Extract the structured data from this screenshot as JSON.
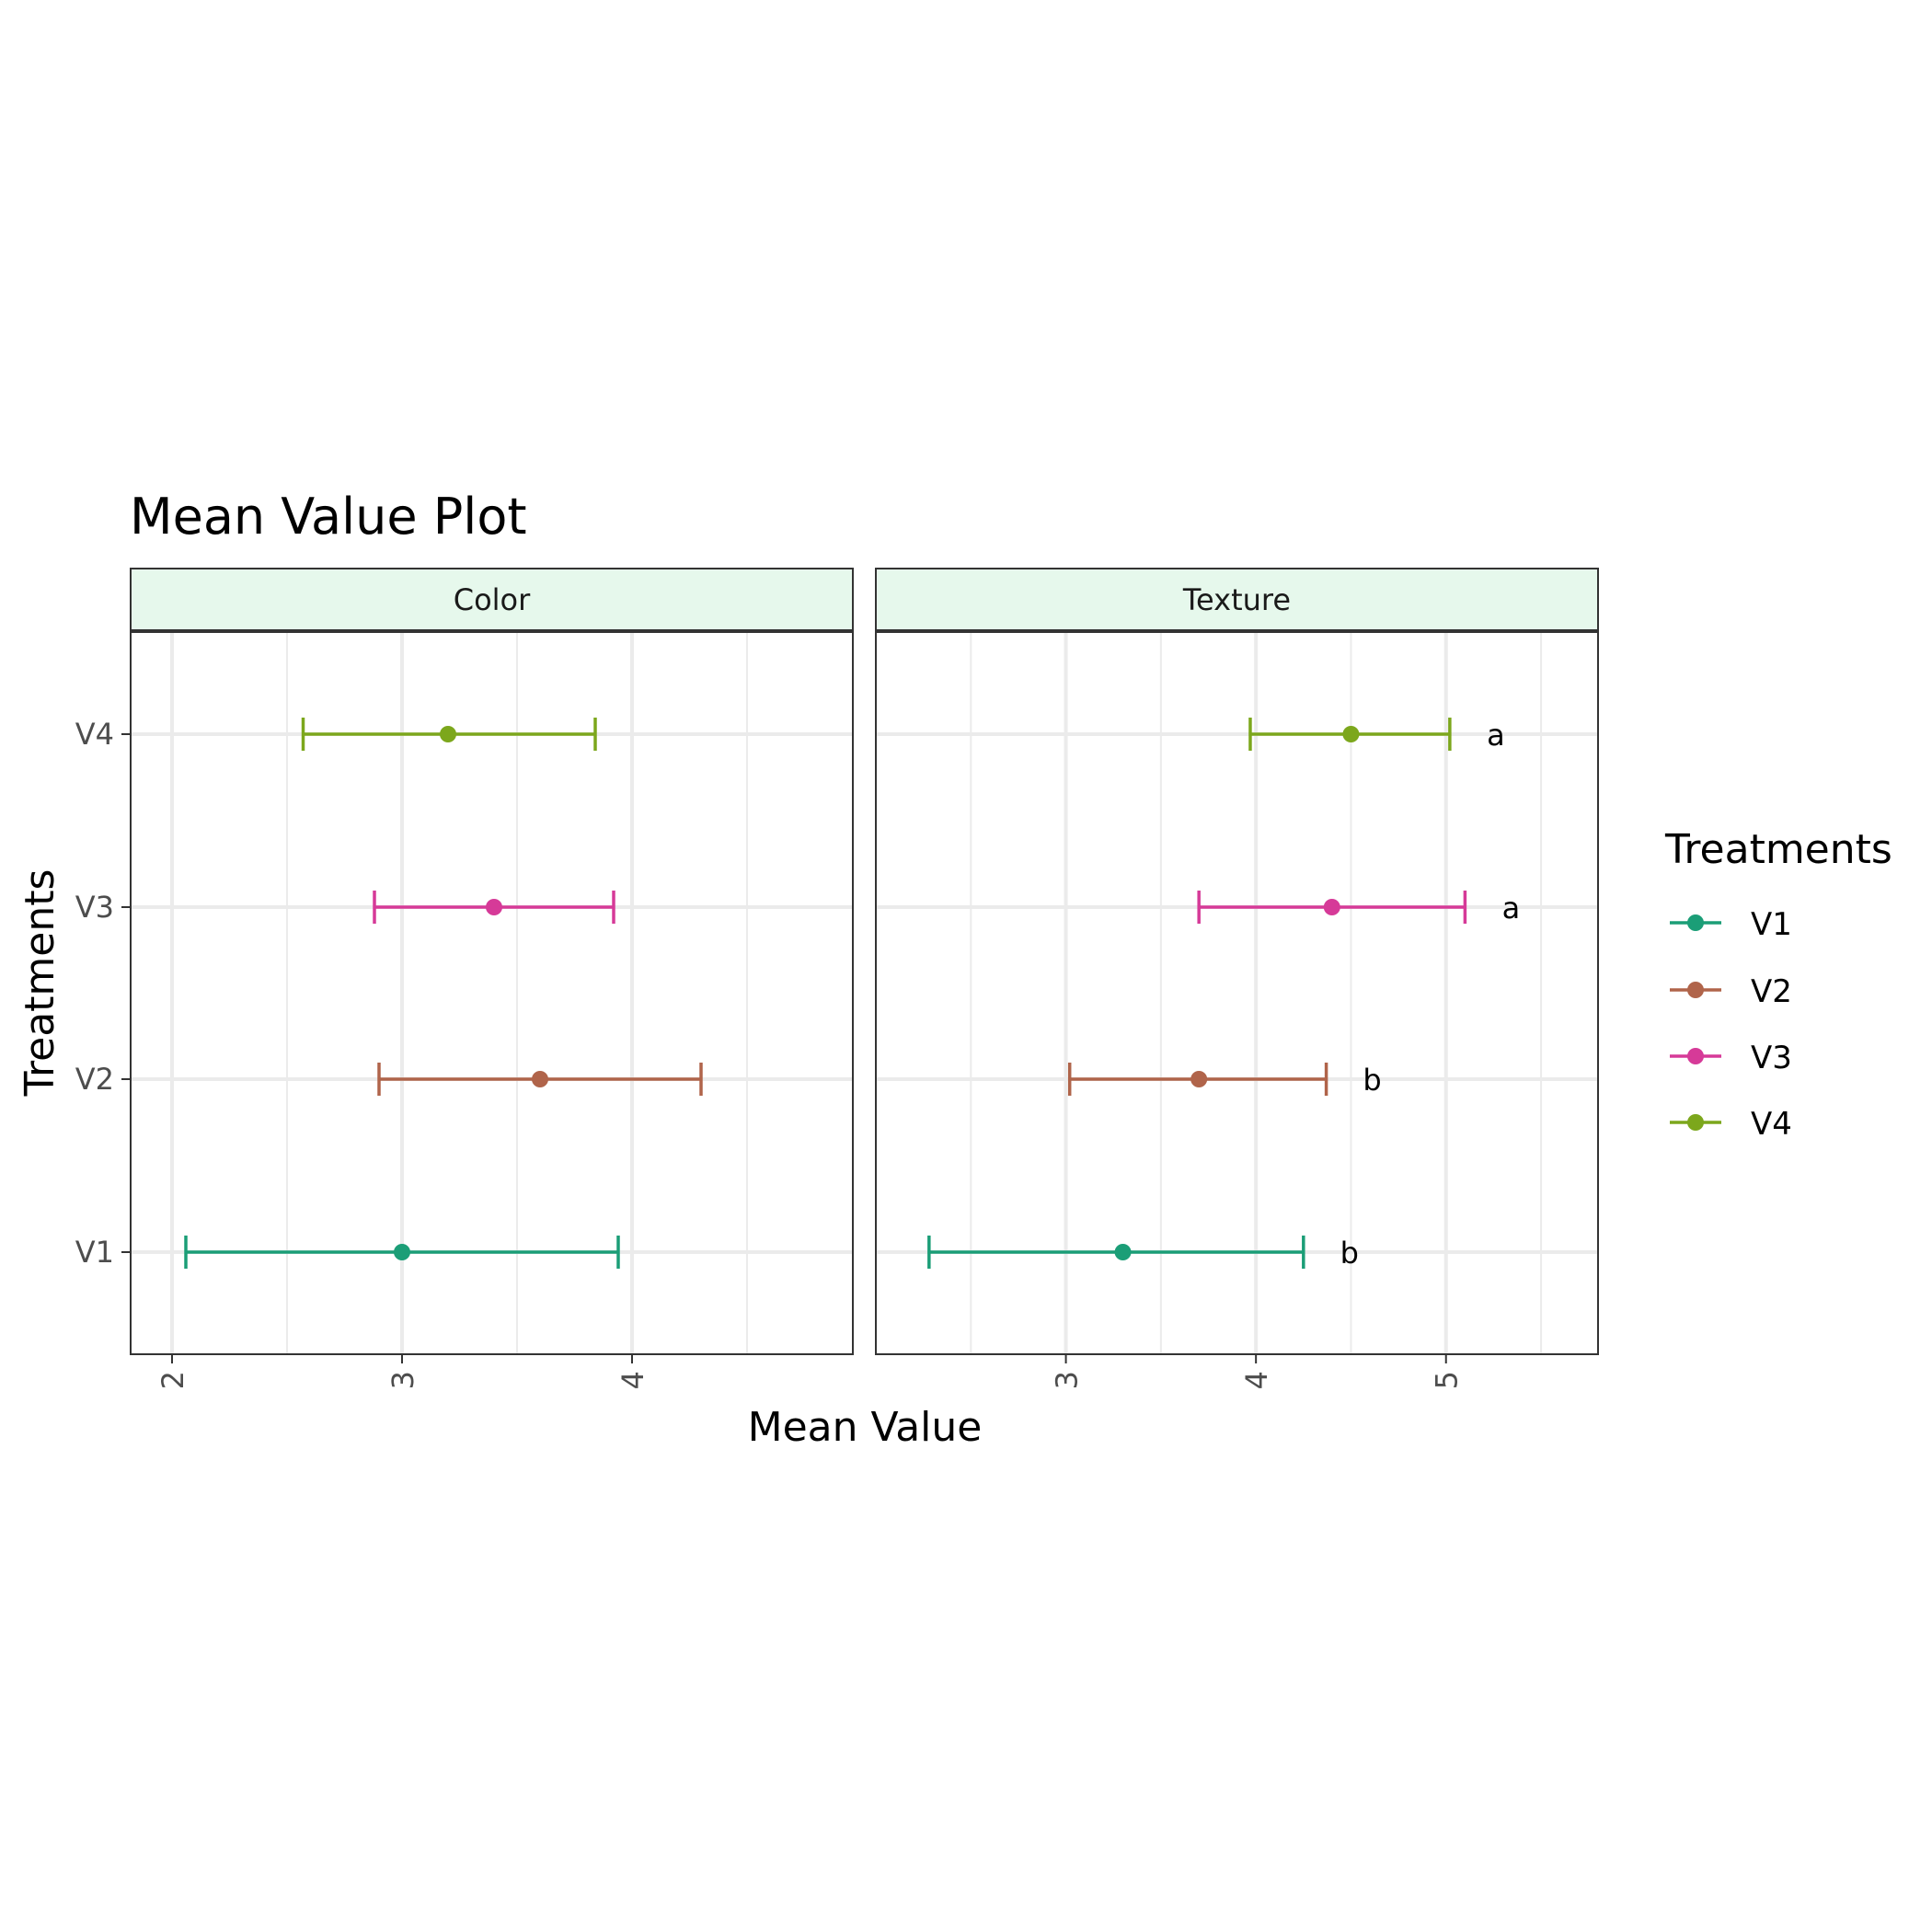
{
  "chart_data": {
    "type": "errorbar",
    "title": "Mean Value Plot",
    "xlabel": "Mean Value",
    "ylabel": "Treatments",
    "categories": [
      "V1",
      "V2",
      "V3",
      "V4"
    ],
    "legend": {
      "title": "Treatments",
      "position": "right",
      "items": [
        "V1",
        "V2",
        "V3",
        "V4"
      ]
    },
    "colors": {
      "V1": "#1b9e77",
      "V2": "#b0644a",
      "V3": "#d63a98",
      "V4": "#7ca71c",
      "strip_fill": "#e6f8ec",
      "grid": "#ebebeb"
    },
    "grid": true,
    "panels": [
      {
        "name": "Color",
        "xlim": [
          1.82,
          4.96
        ],
        "xticks": [
          2,
          3,
          4
        ],
        "xticklabels": [
          "2",
          "3",
          "4"
        ],
        "points": [
          {
            "treatment": "V1",
            "mean": 3.0,
            "lower": 2.06,
            "upper": 3.94,
            "group": ""
          },
          {
            "treatment": "V2",
            "mean": 3.6,
            "lower": 2.9,
            "upper": 4.3,
            "group": ""
          },
          {
            "treatment": "V3",
            "mean": 3.4,
            "lower": 2.88,
            "upper": 3.92,
            "group": ""
          },
          {
            "treatment": "V4",
            "mean": 3.2,
            "lower": 2.57,
            "upper": 3.84,
            "group": ""
          }
        ]
      },
      {
        "name": "Texture",
        "xlim": [
          2.0,
          5.8
        ],
        "xticks": [
          3,
          4,
          5
        ],
        "xticklabels": [
          "3",
          "4",
          "5"
        ],
        "points": [
          {
            "treatment": "V1",
            "mean": 3.3,
            "lower": 2.28,
            "upper": 4.25,
            "group": "b"
          },
          {
            "treatment": "V2",
            "mean": 3.7,
            "lower": 3.02,
            "upper": 4.37,
            "group": "b"
          },
          {
            "treatment": "V3",
            "mean": 4.4,
            "lower": 3.7,
            "upper": 5.1,
            "group": "a"
          },
          {
            "treatment": "V4",
            "mean": 4.5,
            "lower": 3.97,
            "upper": 5.02,
            "group": "a"
          }
        ]
      }
    ]
  }
}
